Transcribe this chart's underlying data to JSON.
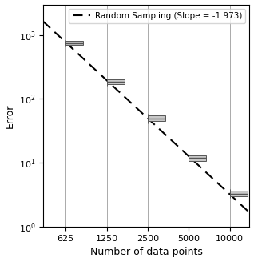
{
  "x_points": [
    625,
    1250,
    2500,
    5000,
    10000
  ],
  "medians": [
    750.0,
    185.0,
    50.0,
    12.0,
    3.3
  ],
  "q1_vals": [
    700.0,
    170.0,
    45.0,
    10.8,
    3.05
  ],
  "q3_vals": [
    820.0,
    200.0,
    55.0,
    13.0,
    3.65
  ],
  "whislo": [
    660.0,
    162.0,
    42.0,
    10.2,
    2.85
  ],
  "whishi": [
    840.0,
    210.0,
    59.0,
    13.8,
    3.85
  ],
  "slope": -1.973,
  "legend_label": "Random Sampling (Slope = -1.973)",
  "xlabel": "Number of data points",
  "ylabel": "Error",
  "ylim_log": [
    1.0,
    3000.0
  ],
  "xlim_log": [
    430,
    14000
  ],
  "xticks": [
    625,
    1250,
    2500,
    5000,
    10000
  ],
  "xticklabels": [
    "625",
    "1250",
    "2500",
    "5000",
    "10000"
  ],
  "line_color": "black",
  "box_facecolor": "#c8c8c8",
  "box_edgecolor": "#555555",
  "axis_fontsize": 9,
  "tick_fontsize": 8,
  "legend_fontsize": 7.5
}
